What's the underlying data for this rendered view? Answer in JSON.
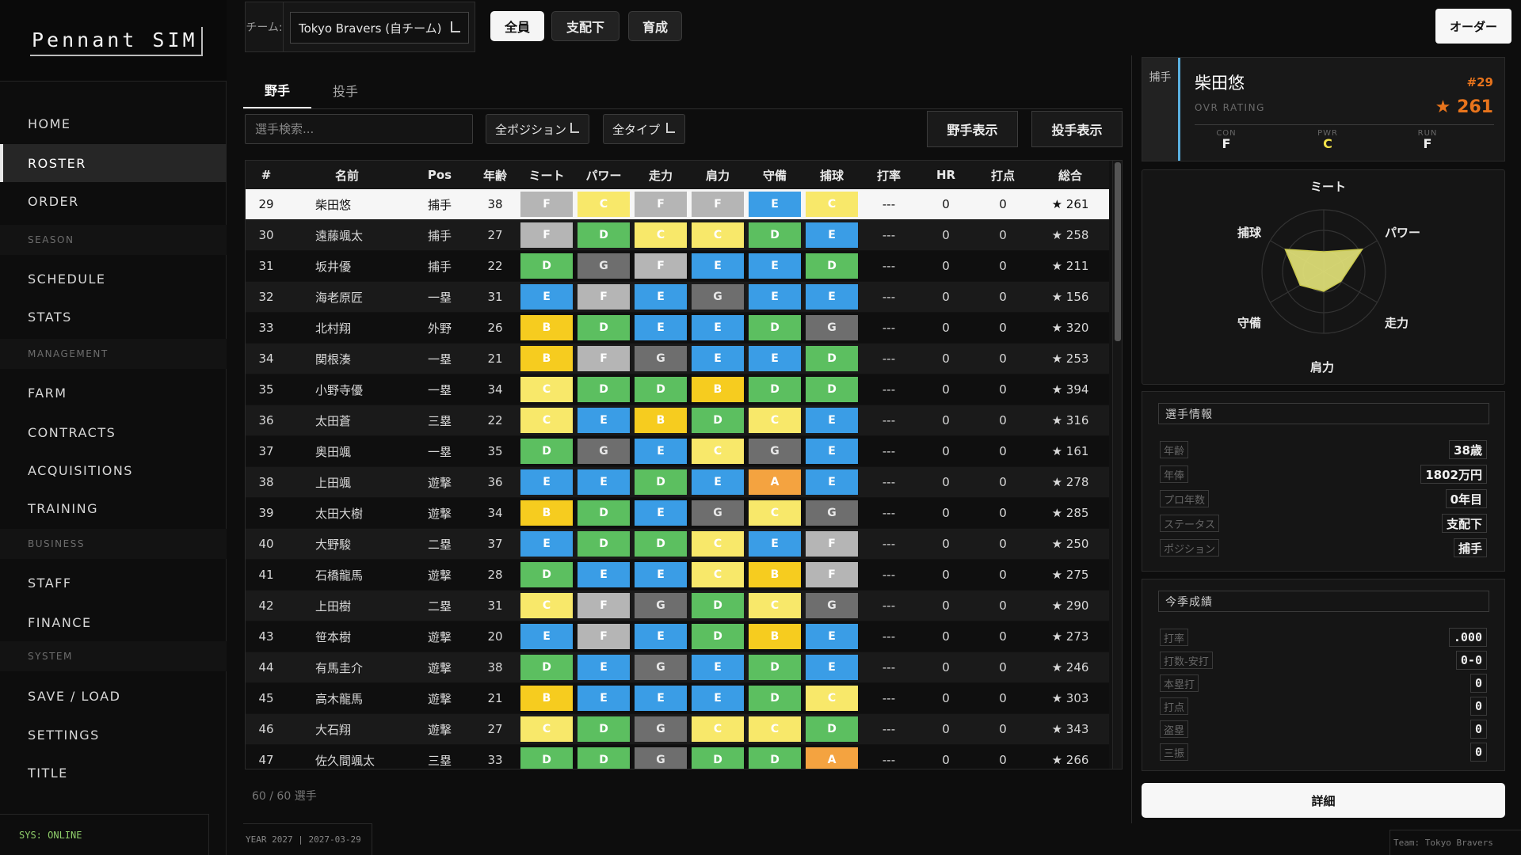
{
  "app": {
    "logo": "Pennant SIM",
    "status": "SYS: ONLINE",
    "date_line": "YEAR 2027 | 2027-03-29",
    "team_footer": "Team: Tokyo Bravers"
  },
  "sidebar": {
    "items": [
      {
        "label": "HOME",
        "type": "nav",
        "active": false
      },
      {
        "label": "ROSTER",
        "type": "nav",
        "active": true
      },
      {
        "label": "ORDER",
        "type": "nav",
        "active": false
      },
      {
        "label": "SEASON",
        "type": "section"
      },
      {
        "label": "SCHEDULE",
        "type": "nav",
        "active": false
      },
      {
        "label": "STATS",
        "type": "nav",
        "active": false
      },
      {
        "label": "MANAGEMENT",
        "type": "section"
      },
      {
        "label": "FARM",
        "type": "nav",
        "active": false
      },
      {
        "label": "CONTRACTS",
        "type": "nav",
        "active": false
      },
      {
        "label": "ACQUISITIONS",
        "type": "nav",
        "active": false
      },
      {
        "label": "TRAINING",
        "type": "nav",
        "active": false
      },
      {
        "label": "BUSINESS",
        "type": "section"
      },
      {
        "label": "STAFF",
        "type": "nav",
        "active": false
      },
      {
        "label": "FINANCE",
        "type": "nav",
        "active": false
      },
      {
        "label": "SYSTEM",
        "type": "section"
      },
      {
        "label": "SAVE / LOAD",
        "type": "nav",
        "active": false
      },
      {
        "label": "SETTINGS",
        "type": "nav",
        "active": false
      },
      {
        "label": "TITLE",
        "type": "nav",
        "active": false
      }
    ]
  },
  "topbar": {
    "team_label": "チーム:",
    "team_value": "Tokyo Bravers (自チーム)",
    "filters": [
      "全員",
      "支配下",
      "育成"
    ],
    "active_filter": 0,
    "order_button": "オーダー"
  },
  "tabs": {
    "fielders": "野手",
    "pitchers": "投手",
    "active": "fielders"
  },
  "toolbar": {
    "search_placeholder": "選手検索...",
    "position_filter": "全ポジション",
    "type_filter": "全タイプ",
    "show_fielders": "野手表示",
    "show_pitchers": "投手表示"
  },
  "table": {
    "columns": [
      "#",
      "名前",
      "Pos",
      "年齢",
      "ミート",
      "パワー",
      "走力",
      "肩力",
      "守備",
      "捕球",
      "打率",
      "HR",
      "打点",
      "総合"
    ],
    "selected_row": 0,
    "rows": [
      {
        "no": "29",
        "name": "柴田悠",
        "pos": "捕手",
        "age": "38",
        "grades": [
          "F",
          "C",
          "F",
          "F",
          "E",
          "C"
        ],
        "avg": "---",
        "hr": "0",
        "rbi": "0",
        "ovr": "★ 261"
      },
      {
        "no": "30",
        "name": "遠藤颯太",
        "pos": "捕手",
        "age": "27",
        "grades": [
          "F",
          "D",
          "C",
          "C",
          "D",
          "E"
        ],
        "avg": "---",
        "hr": "0",
        "rbi": "0",
        "ovr": "★ 258"
      },
      {
        "no": "31",
        "name": "坂井優",
        "pos": "捕手",
        "age": "22",
        "grades": [
          "D",
          "G",
          "F",
          "E",
          "E",
          "D"
        ],
        "avg": "---",
        "hr": "0",
        "rbi": "0",
        "ovr": "★ 211"
      },
      {
        "no": "32",
        "name": "海老原匠",
        "pos": "一塁",
        "age": "31",
        "grades": [
          "E",
          "F",
          "E",
          "G",
          "E",
          "E"
        ],
        "avg": "---",
        "hr": "0",
        "rbi": "0",
        "ovr": "★ 156"
      },
      {
        "no": "33",
        "name": "北村翔",
        "pos": "外野",
        "age": "26",
        "grades": [
          "B",
          "D",
          "E",
          "E",
          "D",
          "G"
        ],
        "avg": "---",
        "hr": "0",
        "rbi": "0",
        "ovr": "★ 320"
      },
      {
        "no": "34",
        "name": "関根湊",
        "pos": "一塁",
        "age": "21",
        "grades": [
          "B",
          "F",
          "G",
          "E",
          "E",
          "D"
        ],
        "avg": "---",
        "hr": "0",
        "rbi": "0",
        "ovr": "★ 253"
      },
      {
        "no": "35",
        "name": "小野寺優",
        "pos": "一塁",
        "age": "34",
        "grades": [
          "C",
          "D",
          "D",
          "B",
          "D",
          "D"
        ],
        "avg": "---",
        "hr": "0",
        "rbi": "0",
        "ovr": "★ 394"
      },
      {
        "no": "36",
        "name": "太田蒼",
        "pos": "三塁",
        "age": "22",
        "grades": [
          "C",
          "E",
          "B",
          "D",
          "C",
          "E"
        ],
        "avg": "---",
        "hr": "0",
        "rbi": "0",
        "ovr": "★ 316"
      },
      {
        "no": "37",
        "name": "奥田颯",
        "pos": "一塁",
        "age": "35",
        "grades": [
          "D",
          "G",
          "E",
          "C",
          "G",
          "E"
        ],
        "avg": "---",
        "hr": "0",
        "rbi": "0",
        "ovr": "★ 161"
      },
      {
        "no": "38",
        "name": "上田颯",
        "pos": "遊撃",
        "age": "36",
        "grades": [
          "E",
          "E",
          "D",
          "E",
          "A",
          "E"
        ],
        "avg": "---",
        "hr": "0",
        "rbi": "0",
        "ovr": "★ 278"
      },
      {
        "no": "39",
        "name": "太田大樹",
        "pos": "遊撃",
        "age": "34",
        "grades": [
          "B",
          "D",
          "E",
          "G",
          "C",
          "G"
        ],
        "avg": "---",
        "hr": "0",
        "rbi": "0",
        "ovr": "★ 285"
      },
      {
        "no": "40",
        "name": "大野駿",
        "pos": "二塁",
        "age": "37",
        "grades": [
          "E",
          "D",
          "D",
          "C",
          "E",
          "F"
        ],
        "avg": "---",
        "hr": "0",
        "rbi": "0",
        "ovr": "★ 250"
      },
      {
        "no": "41",
        "name": "石橋龍馬",
        "pos": "遊撃",
        "age": "28",
        "grades": [
          "D",
          "E",
          "E",
          "C",
          "B",
          "F"
        ],
        "avg": "---",
        "hr": "0",
        "rbi": "0",
        "ovr": "★ 275"
      },
      {
        "no": "42",
        "name": "上田樹",
        "pos": "二塁",
        "age": "31",
        "grades": [
          "C",
          "F",
          "G",
          "D",
          "C",
          "G"
        ],
        "avg": "---",
        "hr": "0",
        "rbi": "0",
        "ovr": "★ 290"
      },
      {
        "no": "43",
        "name": "笹本樹",
        "pos": "遊撃",
        "age": "20",
        "grades": [
          "E",
          "F",
          "E",
          "D",
          "B",
          "E"
        ],
        "avg": "---",
        "hr": "0",
        "rbi": "0",
        "ovr": "★ 273"
      },
      {
        "no": "44",
        "name": "有馬圭介",
        "pos": "遊撃",
        "age": "38",
        "grades": [
          "D",
          "E",
          "G",
          "E",
          "D",
          "E"
        ],
        "avg": "---",
        "hr": "0",
        "rbi": "0",
        "ovr": "★ 246"
      },
      {
        "no": "45",
        "name": "高木龍馬",
        "pos": "遊撃",
        "age": "21",
        "grades": [
          "B",
          "E",
          "E",
          "E",
          "D",
          "C"
        ],
        "avg": "---",
        "hr": "0",
        "rbi": "0",
        "ovr": "★ 303"
      },
      {
        "no": "46",
        "name": "大石翔",
        "pos": "遊撃",
        "age": "27",
        "grades": [
          "C",
          "D",
          "G",
          "C",
          "C",
          "D"
        ],
        "avg": "---",
        "hr": "0",
        "rbi": "0",
        "ovr": "★ 343"
      },
      {
        "no": "47",
        "name": "佐久間颯太",
        "pos": "三塁",
        "age": "33",
        "grades": [
          "D",
          "D",
          "G",
          "D",
          "D",
          "A"
        ],
        "avg": "---",
        "hr": "0",
        "rbi": "0",
        "ovr": "★ 266"
      }
    ],
    "count_text": "60 / 60 選手"
  },
  "grade_colors": {
    "A": {
      "bg": "#f4a340",
      "fg": "#ffffff"
    },
    "B": {
      "bg": "#f6cc1f",
      "fg": "#ffffff"
    },
    "C": {
      "bg": "#f8e86a",
      "fg": "#ffffff"
    },
    "D": {
      "bg": "#5cbf60",
      "fg": "#ffffff"
    },
    "E": {
      "bg": "#3a9de6",
      "fg": "#ffffff"
    },
    "F": {
      "bg": "#b5b5b5",
      "fg": "#ffffff"
    },
    "G": {
      "bg": "#6e6e6e",
      "fg": "#e8e8e8"
    }
  },
  "player": {
    "position": "捕手",
    "name": "柴田悠",
    "number": "#29",
    "ovr_label": "OVR RATING",
    "ovr_value": "261",
    "accent_color": "#e8741c",
    "mini_stats": [
      {
        "label": "CON",
        "value": "F",
        "color": "#eeeeee"
      },
      {
        "label": "PWR",
        "value": "C",
        "color": "#f2e24a"
      },
      {
        "label": "RUN",
        "value": "F",
        "color": "#eeeeee"
      }
    ],
    "radar": {
      "axes": [
        "ミート",
        "パワー",
        "走力",
        "肩力",
        "守備",
        "捕球"
      ],
      "grades": [
        "F",
        "C",
        "F",
        "F",
        "E",
        "C"
      ],
      "fill_color": "#e6e57a"
    },
    "info_title": "選手情報",
    "info": [
      {
        "label": "年齢",
        "value": "38歳"
      },
      {
        "label": "年俸",
        "value": "1802万円"
      },
      {
        "label": "プロ年数",
        "value": "0年目"
      },
      {
        "label": "ステータス",
        "value": "支配下"
      },
      {
        "label": "ポジション",
        "value": "捕手"
      }
    ],
    "season_title": "今季成績",
    "season": [
      {
        "label": "打率",
        "value": ".000"
      },
      {
        "label": "打数-安打",
        "value": "0-0"
      },
      {
        "label": "本塁打",
        "value": "0"
      },
      {
        "label": "打点",
        "value": "0"
      },
      {
        "label": "盗塁",
        "value": "0"
      },
      {
        "label": "三振",
        "value": "0"
      }
    ],
    "detail_button": "詳細"
  }
}
